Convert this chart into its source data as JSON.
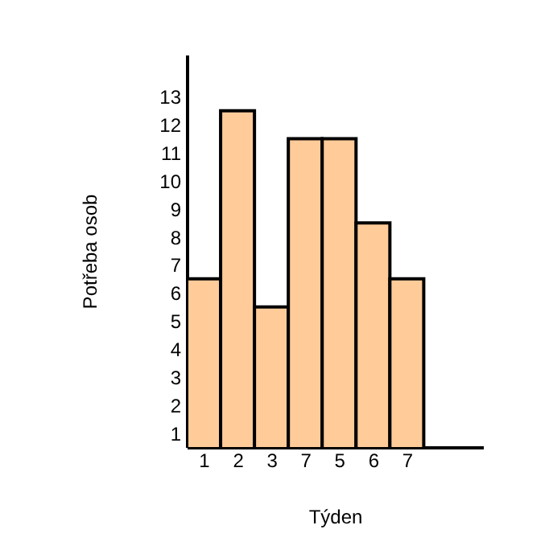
{
  "chart_data": {
    "type": "bar",
    "xlabel": "Týden",
    "ylabel": "Potřeba osob",
    "categories": [
      "1",
      "2",
      "3",
      "7",
      "5",
      "6",
      "7"
    ],
    "values": [
      6.5,
      12.5,
      5.5,
      11.5,
      11.5,
      8.5,
      6.5
    ],
    "color": "#fecb99",
    "ylim": [
      0.5,
      14.5
    ],
    "yticks": [
      1,
      2,
      3,
      4,
      5,
      6,
      7,
      8,
      9,
      10,
      11,
      12,
      13
    ],
    "grid": false,
    "legend": false
  }
}
